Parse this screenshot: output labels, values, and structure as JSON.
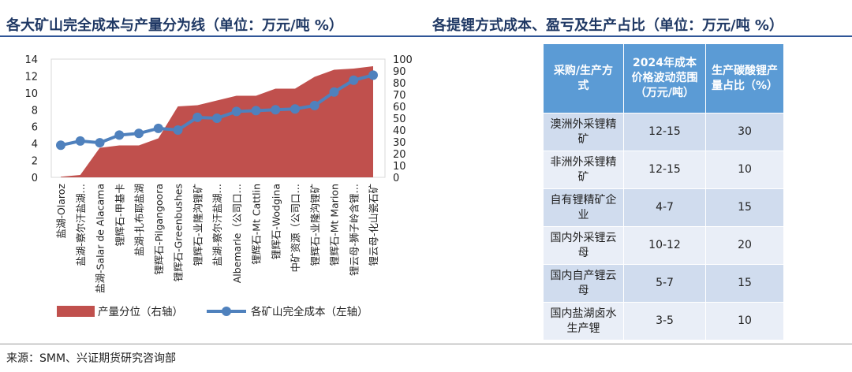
{
  "titles": {
    "left": "各大矿山完全成本与产量分为线（单位：万元/吨 %）",
    "right": "各提锂方式成本、盈亏及生产占比（单位：万元/吨 %）"
  },
  "chart_data": {
    "type": "area+line",
    "categories": [
      "盐湖-Olaroz",
      "盐湖-察尔汗盐湖…",
      "盐湖-Salar de Alacama",
      "锂辉石-甲基卡",
      "盐湖-扎布耶盐湖",
      "锂辉石-Pilgangoora",
      "锂辉石-Greenbushes",
      "锂辉石-业隆沟锂矿",
      "盐湖-察尔汗盐湖…",
      "Albemarle（公司口…",
      "锂辉石-Mt Cattlin",
      "锂辉石-Wodgina",
      "中矿资源（公司口…",
      "锂辉石-业隆沟锂矿",
      "锂辉石-Mt Marion",
      "锂云母-狮子岭含锂…",
      "锂云母-化山瓷石矿"
    ],
    "series": [
      {
        "name": "产量分位（右轴）",
        "type": "area",
        "axis": "right",
        "color": "#c0504d",
        "values": [
          0.5,
          2,
          25,
          27,
          27,
          33,
          60,
          61,
          65,
          69,
          69,
          75,
          75,
          85,
          91,
          92,
          94
        ]
      },
      {
        "name": "各矿山完全成本（左轴）",
        "type": "line",
        "axis": "left",
        "color": "#4f81bd",
        "values": [
          3.8,
          4.3,
          4.1,
          5.0,
          5.2,
          5.8,
          5.6,
          7.1,
          7.0,
          7.8,
          7.9,
          8.0,
          8.1,
          8.5,
          10.1,
          11.5,
          12.1
        ]
      }
    ],
    "left_axis": {
      "range": [
        0,
        14
      ],
      "ticks": [
        "0",
        "2",
        "4",
        "6",
        "8",
        "10",
        "12",
        "14"
      ]
    },
    "right_axis": {
      "range": [
        0,
        100
      ],
      "ticks": [
        "0",
        "10",
        "20",
        "30",
        "40",
        "50",
        "60",
        "70",
        "80",
        "90",
        "100"
      ]
    },
    "legend_position": "bottom",
    "grid": false
  },
  "table": {
    "headers": [
      "采购/生产方式",
      "2024年成本价格波动范围（万元/吨）",
      "生产碳酸锂产量占比（%）"
    ],
    "rows": [
      [
        "澳洲外采锂精矿",
        "12-15",
        "30"
      ],
      [
        "非洲外采锂精矿",
        "12-15",
        "10"
      ],
      [
        "自有锂精矿企业",
        "4-7",
        "15"
      ],
      [
        "国内外采锂云母",
        "10-12",
        "20"
      ],
      [
        "国内自产锂云母",
        "5-7",
        "15"
      ],
      [
        "国内盐湖卤水生产锂",
        "3-5",
        "10"
      ]
    ]
  },
  "footer": "来源：SMM、兴证期货研究咨询部"
}
